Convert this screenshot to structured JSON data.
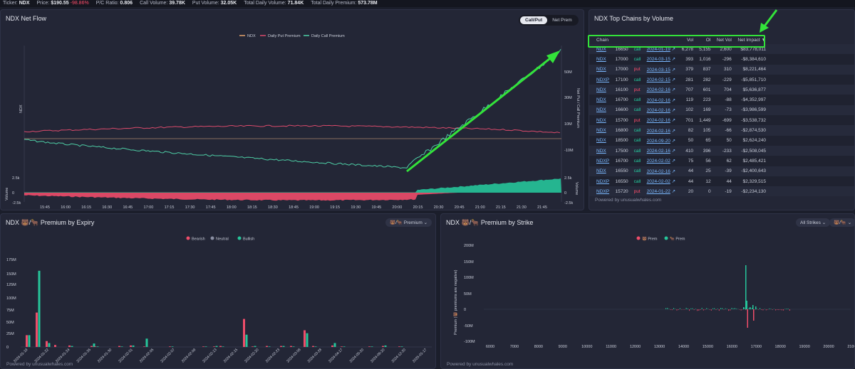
{
  "topbar": {
    "ticker_label": "Ticker:",
    "ticker": "NDX",
    "price_label": "Price:",
    "price": "$190.55",
    "price_change": "-98.86%",
    "pc_ratio_label": "P/C Ratio:",
    "pc_ratio": "0.806",
    "call_volume_label": "Call Volume:",
    "call_volume": "39.78K",
    "put_volume_label": "Put Volume:",
    "put_volume": "32.05K",
    "total_volume_label": "Total Daily Volume:",
    "total_volume": "71.84K",
    "total_premium_label": "Total Daily Premium:",
    "total_premium": "573.78M"
  },
  "netflow": {
    "title": "NDX Net Flow",
    "toggle": [
      "Call/Put",
      "Net Prem"
    ],
    "legend": [
      "NDX",
      "Daily Put Premium",
      "Daily Call Premium"
    ],
    "left_axis_label": "NDX",
    "right_axis_label": "Net Put / Call Premium",
    "right_ticks": [
      "50M",
      "30M",
      "10M",
      "-10M"
    ],
    "volume_label": "Volume",
    "volume_ticks": [
      "2.5k",
      "0",
      "-2.5k"
    ],
    "times": [
      "15:45",
      "16:00",
      "16:15",
      "16:30",
      "16:45",
      "17:00",
      "17:15",
      "17:30",
      "17:45",
      "18:00",
      "18:15",
      "18:30",
      "18:45",
      "19:00",
      "19:15",
      "19:30",
      "19:45",
      "20:00",
      "20:15",
      "20:30",
      "20:45",
      "21:00",
      "21:15",
      "21:30",
      "21:45"
    ]
  },
  "chains": {
    "title": "NDX Top Chains by Volume",
    "headers": [
      "Chain",
      "Vol",
      "OI",
      "Net Vol",
      "Net Impact"
    ],
    "sort_indicator": "▼",
    "rows": [
      {
        "sym": "NDX",
        "strike": "16650",
        "type": "call",
        "date": "2024-01-19",
        "vol": "6,278",
        "oi": "5,155",
        "netvol": "2,600",
        "impact": "$83,778,011"
      },
      {
        "sym": "NDX",
        "strike": "17000",
        "type": "call",
        "date": "2024-03-15",
        "vol": "393",
        "oi": "1,016",
        "netvol": "-296",
        "impact": "-$8,384,610"
      },
      {
        "sym": "NDX",
        "strike": "17000",
        "type": "put",
        "date": "2024-03-15",
        "vol": "379",
        "oi": "837",
        "netvol": "310",
        "impact": "$8,221,464"
      },
      {
        "sym": "NDXP",
        "strike": "17100",
        "type": "call",
        "date": "2024-02-15",
        "vol": "281",
        "oi": "282",
        "netvol": "-229",
        "impact": "-$5,851,710"
      },
      {
        "sym": "NDX",
        "strike": "16100",
        "type": "put",
        "date": "2024-02-16",
        "vol": "707",
        "oi": "601",
        "netvol": "704",
        "impact": "$5,636,877"
      },
      {
        "sym": "NDX",
        "strike": "16700",
        "type": "call",
        "date": "2024-02-16",
        "vol": "119",
        "oi": "223",
        "netvol": "-88",
        "impact": "-$4,352,997"
      },
      {
        "sym": "NDX",
        "strike": "16600",
        "type": "call",
        "date": "2024-02-16",
        "vol": "102",
        "oi": "169",
        "netvol": "-73",
        "impact": "-$3,986,599"
      },
      {
        "sym": "NDX",
        "strike": "15700",
        "type": "put",
        "date": "2024-02-16",
        "vol": "701",
        "oi": "1,449",
        "netvol": "-699",
        "impact": "-$3,538,732"
      },
      {
        "sym": "NDX",
        "strike": "16800",
        "type": "call",
        "date": "2024-02-16",
        "vol": "82",
        "oi": "105",
        "netvol": "-66",
        "impact": "-$2,874,530"
      },
      {
        "sym": "NDX",
        "strike": "18500",
        "type": "call",
        "date": "2024-09-20",
        "vol": "50",
        "oi": "65",
        "netvol": "50",
        "impact": "$2,624,240"
      },
      {
        "sym": "NDX",
        "strike": "17500",
        "type": "call",
        "date": "2024-02-16",
        "vol": "410",
        "oi": "396",
        "netvol": "-233",
        "impact": "-$2,508,045"
      },
      {
        "sym": "NDXP",
        "strike": "16700",
        "type": "call",
        "date": "2024-02-02",
        "vol": "75",
        "oi": "56",
        "netvol": "62",
        "impact": "$2,485,421"
      },
      {
        "sym": "NDX",
        "strike": "16550",
        "type": "call",
        "date": "2024-02-16",
        "vol": "44",
        "oi": "25",
        "netvol": "-39",
        "impact": "-$2,400,643"
      },
      {
        "sym": "NDXP",
        "strike": "16550",
        "type": "call",
        "date": "2024-02-02",
        "vol": "44",
        "oi": "12",
        "netvol": "44",
        "impact": "$2,329,515"
      },
      {
        "sym": "NDXP",
        "strike": "15720",
        "type": "put",
        "date": "2024-01-22",
        "vol": "20",
        "oi": "0",
        "netvol": "-19",
        "impact": "-$2,234,130"
      }
    ],
    "powered": "Powered by unusualwhales.com"
  },
  "expiry": {
    "title": "NDX 🐻/🐂 Premium by Expiry",
    "select": "🐻/🐂 Premium ⌄",
    "legend": [
      "Bearish",
      "Neutral",
      "Bullish"
    ],
    "y_ticks": [
      "175M",
      "150M",
      "125M",
      "100M",
      "75M",
      "50M",
      "25M",
      "0"
    ],
    "dates": [
      "2024-01-19",
      "2024-01-22",
      "2024-01-24",
      "2024-01-26",
      "2024-01-30",
      "2024-02-01",
      "2024-02-05",
      "2024-02-07",
      "2024-02-09",
      "2024-02-13",
      "2024-02-15",
      "2024-02-20",
      "2024-02-23",
      "2024-03-08",
      "2024-03-28",
      "2024-04-17",
      "2024-05-20",
      "2024-06-20",
      "2024-12-20",
      "2025-01-17"
    ],
    "powered": "Powered by unusualwhales.com"
  },
  "strike": {
    "title": "NDX 🐻/🐂 Premium by Strike",
    "select_strikes": "All Strikes ⌄",
    "select_type": "🐻/🐂 ⌄",
    "legend": [
      "🐻 Prem",
      "🐂 Prem"
    ],
    "y_label": "Premium (🐻 premiums are negative)",
    "y_ticks": [
      "200M",
      "150M",
      "100M",
      "50M",
      "0",
      "-50M",
      "-100M"
    ],
    "x_ticks": [
      "6000",
      "7000",
      "8000",
      "9000",
      "10000",
      "11000",
      "12000",
      "13000",
      "14000",
      "15000",
      "16000",
      "17000",
      "18000",
      "19000",
      "20000",
      "21000"
    ],
    "powered": "Powered by unusualwhales.com"
  },
  "colors": {
    "bear": "#ef4d6a",
    "bull": "#26c59a",
    "neutral": "#8a8fa3",
    "put_line": "#d94a6b",
    "call_line": "#4ecfa6",
    "price_line": "#e3a26b",
    "annotation": "#33e33a"
  }
}
